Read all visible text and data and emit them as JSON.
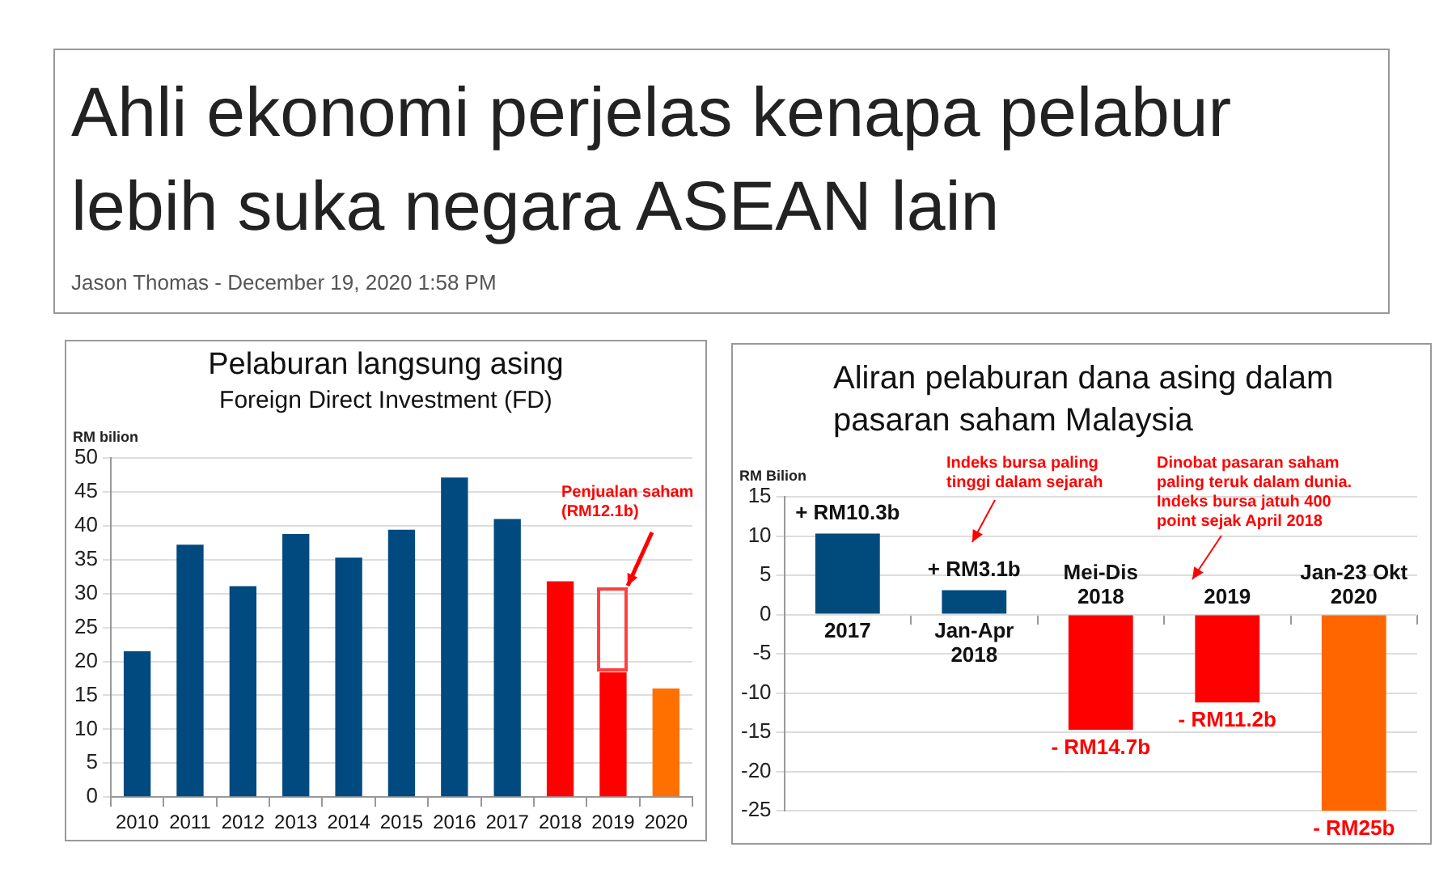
{
  "chart_data": [
    {
      "type": "bar",
      "title": "Pelaburan langsung asing",
      "subtitle": "Foreign Direct Investment (FD)",
      "ylabel": "RM bilion",
      "categories": [
        "2010",
        "2011",
        "2012",
        "2013",
        "2014",
        "2015",
        "2016",
        "2017",
        "2018",
        "2019",
        "2020"
      ],
      "values": [
        21.5,
        37.2,
        31.1,
        38.8,
        35.3,
        39.4,
        47.1,
        41.0,
        31.8,
        18.4,
        16.0
      ],
      "colors": [
        "#004a7f",
        "#004a7f",
        "#004a7f",
        "#004a7f",
        "#004a7f",
        "#004a7f",
        "#004a7f",
        "#004a7f",
        "#ff0000",
        "#ff0000",
        "#ff7000"
      ],
      "ylim": [
        0,
        50
      ],
      "yticks": [
        0,
        5,
        10,
        15,
        20,
        25,
        30,
        35,
        40,
        45,
        50
      ],
      "grid": "y",
      "annotations": [
        "Ahli ekonomi perjelas kenapa pelabur lebih suka negara ASEAN lain",
        "Jason Thomas - December 19, 2020 1:58 PM",
        "Penjualan saham (RM12.1b)"
      ]
    },
    {
      "type": "bar",
      "title": "Aliran pelaburan dana asing dalam pasaran saham Malaysia",
      "ylabel": "RM Bilion",
      "categories": [
        "2017",
        "Jan-Apr 2018",
        "Mei-Dis 2018",
        "2019",
        "Jan-23 Okt 2020"
      ],
      "values": [
        10.3,
        3.1,
        -14.7,
        -11.2,
        -25
      ],
      "value_labels": [
        "+ RM10.3b",
        "+ RM3.1b",
        "- RM14.7b",
        "- RM11.2b",
        "- RM25b"
      ],
      "colors": [
        "#004b7c",
        "#004b7c",
        "#ff0000",
        "#ff0000",
        "#ff6600"
      ],
      "ylim": [
        -25,
        15
      ],
      "yticks": [
        -25,
        -20,
        -15,
        -10,
        -5,
        0,
        5,
        10,
        15
      ],
      "grid": "y",
      "annotations": [
        "Indeks bursa paling tinggi dalam sejarah",
        "Dinobat pasaran saham paling teruk dalam dunia. Indeks bursa jatuh 400 point sejak April 2018"
      ]
    }
  ]
}
